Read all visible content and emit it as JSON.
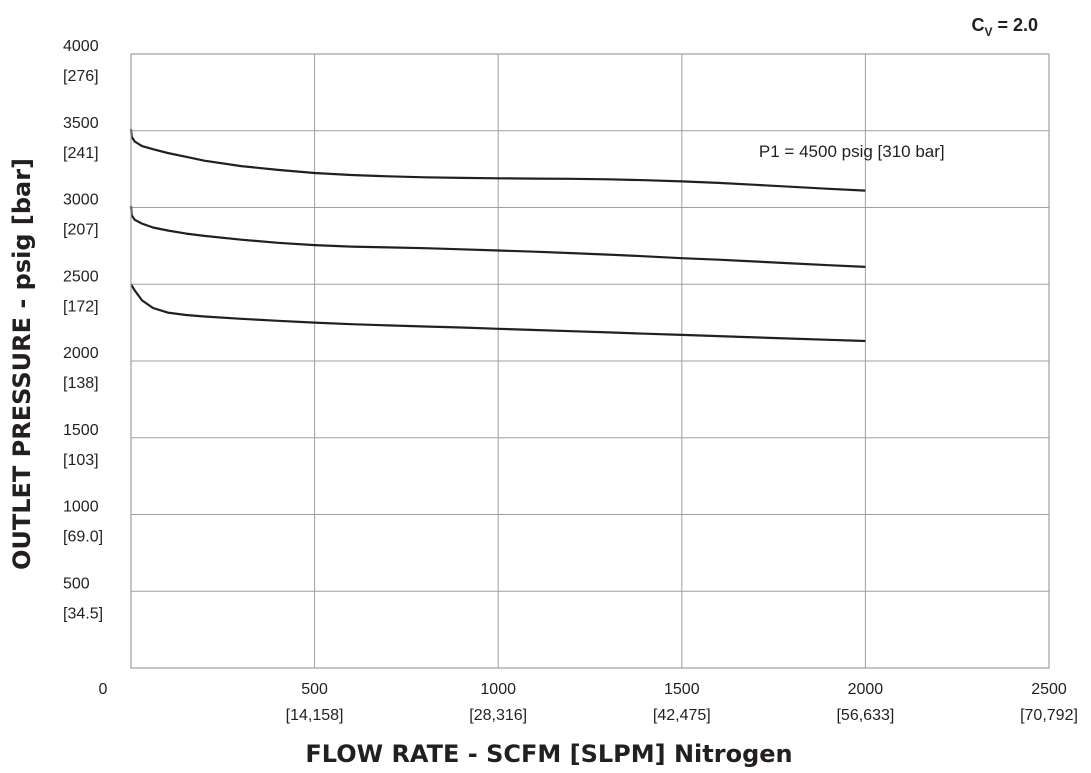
{
  "chart_data": {
    "type": "line",
    "cv": {
      "symbol": "C",
      "subscript": "V",
      "value": "= 2.0"
    },
    "xlabel": "FLOW RATE - SCFM [SLPM] Nitrogen",
    "ylabel": "OUTLET PRESSURE - psig [bar]",
    "xlim": [
      0,
      2500
    ],
    "ylim": [
      0,
      4000
    ],
    "grid": true,
    "x_ticks": [
      {
        "value": 0,
        "label": "0",
        "sub": ""
      },
      {
        "value": 500,
        "label": "500",
        "sub": "[14,158]"
      },
      {
        "value": 1000,
        "label": "1000",
        "sub": "[28,316]"
      },
      {
        "value": 1500,
        "label": "1500",
        "sub": "[42,475]"
      },
      {
        "value": 2000,
        "label": "2000",
        "sub": "[56,633]"
      },
      {
        "value": 2500,
        "label": "2500",
        "sub": "[70,792]"
      }
    ],
    "y_ticks": [
      {
        "value": 500,
        "label": "500",
        "sub": "[34.5]"
      },
      {
        "value": 1000,
        "label": "1000",
        "sub": "[69.0]"
      },
      {
        "value": 1500,
        "label": "1500",
        "sub": "[103]"
      },
      {
        "value": 2000,
        "label": "2000",
        "sub": "[138]"
      },
      {
        "value": 2500,
        "label": "2500",
        "sub": "[172]"
      },
      {
        "value": 3000,
        "label": "3000",
        "sub": "[207]"
      },
      {
        "value": 3500,
        "label": "3500",
        "sub": "[241]"
      },
      {
        "value": 4000,
        "label": "4000",
        "sub": "[276]"
      }
    ],
    "annotations": [
      {
        "text": "P1 = 4500 psig [310 bar]",
        "x": 1710,
        "y": 3330
      }
    ],
    "series": [
      {
        "x": [
          0,
          2,
          10,
          30,
          60,
          100,
          150,
          200,
          300,
          400,
          500,
          600,
          700,
          800,
          900,
          1000,
          1100,
          1200,
          1300,
          1400,
          1500,
          1600,
          1700,
          1800,
          1900,
          2000
        ],
        "y": [
          3510,
          3460,
          3430,
          3400,
          3380,
          3355,
          3330,
          3305,
          3270,
          3245,
          3225,
          3212,
          3203,
          3197,
          3193,
          3190,
          3188,
          3187,
          3184,
          3178,
          3170,
          3160,
          3148,
          3135,
          3122,
          3110
        ]
      },
      {
        "x": [
          0,
          2,
          10,
          30,
          60,
          100,
          150,
          200,
          300,
          400,
          500,
          600,
          700,
          800,
          900,
          1000,
          1100,
          1200,
          1300,
          1400,
          1500,
          1600,
          1700,
          1800,
          1900,
          2000
        ],
        "y": [
          3010,
          2950,
          2920,
          2895,
          2870,
          2850,
          2830,
          2815,
          2790,
          2770,
          2755,
          2745,
          2740,
          2735,
          2728,
          2720,
          2712,
          2703,
          2693,
          2682,
          2670,
          2660,
          2648,
          2636,
          2624,
          2613
        ]
      },
      {
        "x": [
          0,
          10,
          30,
          60,
          100,
          150,
          200,
          300,
          400,
          500,
          600,
          700,
          800,
          900,
          1000,
          1100,
          1200,
          1300,
          1400,
          1500,
          1600,
          1700,
          1800,
          1900,
          2000
        ],
        "y": [
          2500,
          2460,
          2395,
          2345,
          2315,
          2300,
          2290,
          2275,
          2262,
          2250,
          2240,
          2232,
          2225,
          2218,
          2210,
          2202,
          2194,
          2186,
          2178,
          2170,
          2162,
          2154,
          2146,
          2138,
          2130
        ]
      }
    ]
  }
}
